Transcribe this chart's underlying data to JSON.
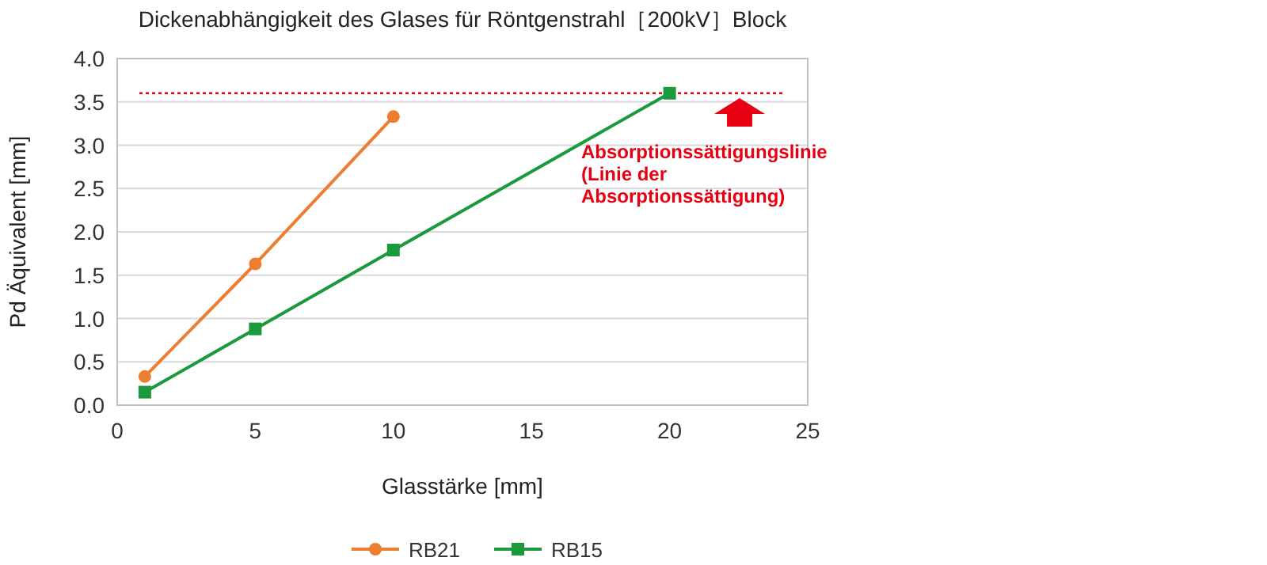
{
  "chart_data": {
    "type": "line",
    "title": "Dickenabhängigkeit des Glases für Röntgenstrahl［200kV］Block",
    "xlabel": "Glasstärke [mm]",
    "ylabel": "Pd Äquivalent [mm]",
    "xlim": [
      0,
      25
    ],
    "xticks": [
      0,
      5,
      10,
      15,
      20,
      25
    ],
    "ylim": [
      0,
      4
    ],
    "yticks": [
      {
        "value": 0,
        "label": "0.0"
      },
      {
        "value": 0.5,
        "label": "0.5"
      },
      {
        "value": 1,
        "label": "1.0"
      },
      {
        "value": 1.5,
        "label": "1.5"
      },
      {
        "value": 2,
        "label": "2.0"
      },
      {
        "value": 2.5,
        "label": "2.5"
      },
      {
        "value": 3,
        "label": "3.0"
      },
      {
        "value": 3.5,
        "label": "3.5"
      },
      {
        "value": 4,
        "label": "4.0"
      }
    ],
    "grid": "y",
    "legend": "bottom",
    "line_style": "solid",
    "series": [
      {
        "name": "RB21",
        "color": "#ed7d31",
        "marker": "circle",
        "x": [
          1,
          5,
          10
        ],
        "values": [
          0.33,
          1.63,
          3.33
        ]
      },
      {
        "name": "RB15",
        "color": "#1a9a3c",
        "marker": "square",
        "x": [
          1,
          5,
          10,
          20
        ],
        "values": [
          0.15,
          0.88,
          1.79,
          3.6
        ]
      }
    ],
    "ref_lines": [
      {
        "axis": "y",
        "value": 3.6,
        "color": "#e60012",
        "line_style": "dotted"
      }
    ],
    "annotations": [
      "Absorptionssättigungslinie\n(Linie der\nAbsorptionssättigung)"
    ]
  }
}
